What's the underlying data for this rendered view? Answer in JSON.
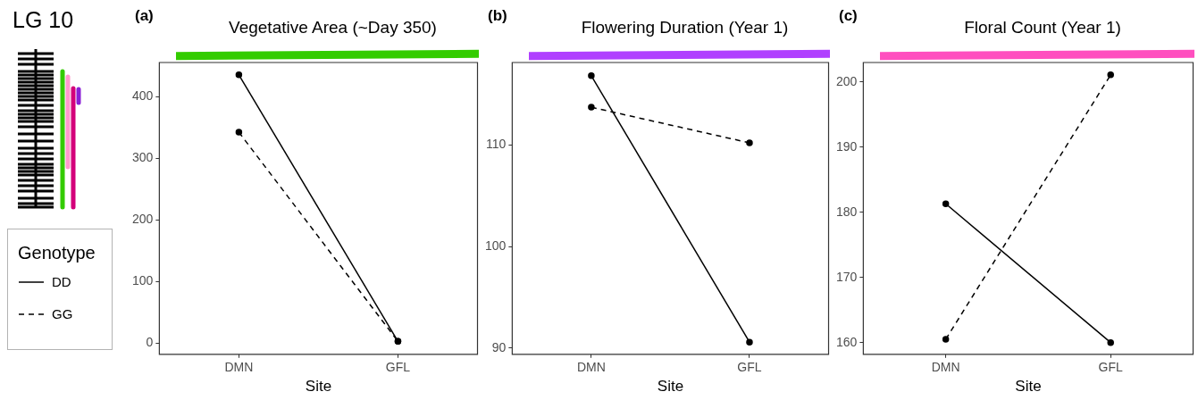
{
  "chart_data": [
    {
      "type": "line",
      "title": "Vegetative Area (~Day 350)",
      "xlabel": "Site",
      "annotations": [
        "(a)",
        "LG 10"
      ],
      "legend": "left",
      "legend_title": "Genotype",
      "categories": [
        "DMN",
        "GFL"
      ],
      "ylim": [
        -18,
        455
      ],
      "yticks": [
        0,
        100,
        200,
        300,
        400
      ],
      "grid": false,
      "marker": "circle",
      "series": [
        {
          "name": "DD",
          "color": "#000000",
          "line_style": "solid",
          "values": [
            435,
            3
          ]
        },
        {
          "name": "GG",
          "color": "#000000",
          "line_style": "dashed",
          "values": [
            342,
            3
          ]
        }
      ]
    },
    {
      "type": "line",
      "title": "Flowering Duration (Year 1)",
      "xlabel": "Site",
      "annotations": [
        "(b)"
      ],
      "categories": [
        "DMN",
        "GFL"
      ],
      "ylim": [
        89.4,
        118.1
      ],
      "yticks": [
        90,
        100,
        110
      ],
      "grid": false,
      "marker": "circle",
      "series": [
        {
          "color": "#000000",
          "line_style": "solid",
          "values": [
            116.8,
            90.6
          ]
        },
        {
          "color": "#000000",
          "line_style": "dashed",
          "values": [
            113.7,
            110.2
          ]
        }
      ]
    },
    {
      "type": "line",
      "title": "Floral Count (Year 1)",
      "xlabel": "Site",
      "annotations": [
        "(c)"
      ],
      "categories": [
        "DMN",
        "GFL"
      ],
      "ylim": [
        158.2,
        203
      ],
      "yticks": [
        160,
        170,
        180,
        190,
        200
      ],
      "grid": false,
      "marker": "circle",
      "series": [
        {
          "color": "#000000",
          "line_style": "solid",
          "values": [
            181.3,
            160
          ]
        },
        {
          "color": "#000000",
          "line_style": "dashed",
          "values": [
            160.5,
            201.1
          ]
        }
      ]
    }
  ]
}
